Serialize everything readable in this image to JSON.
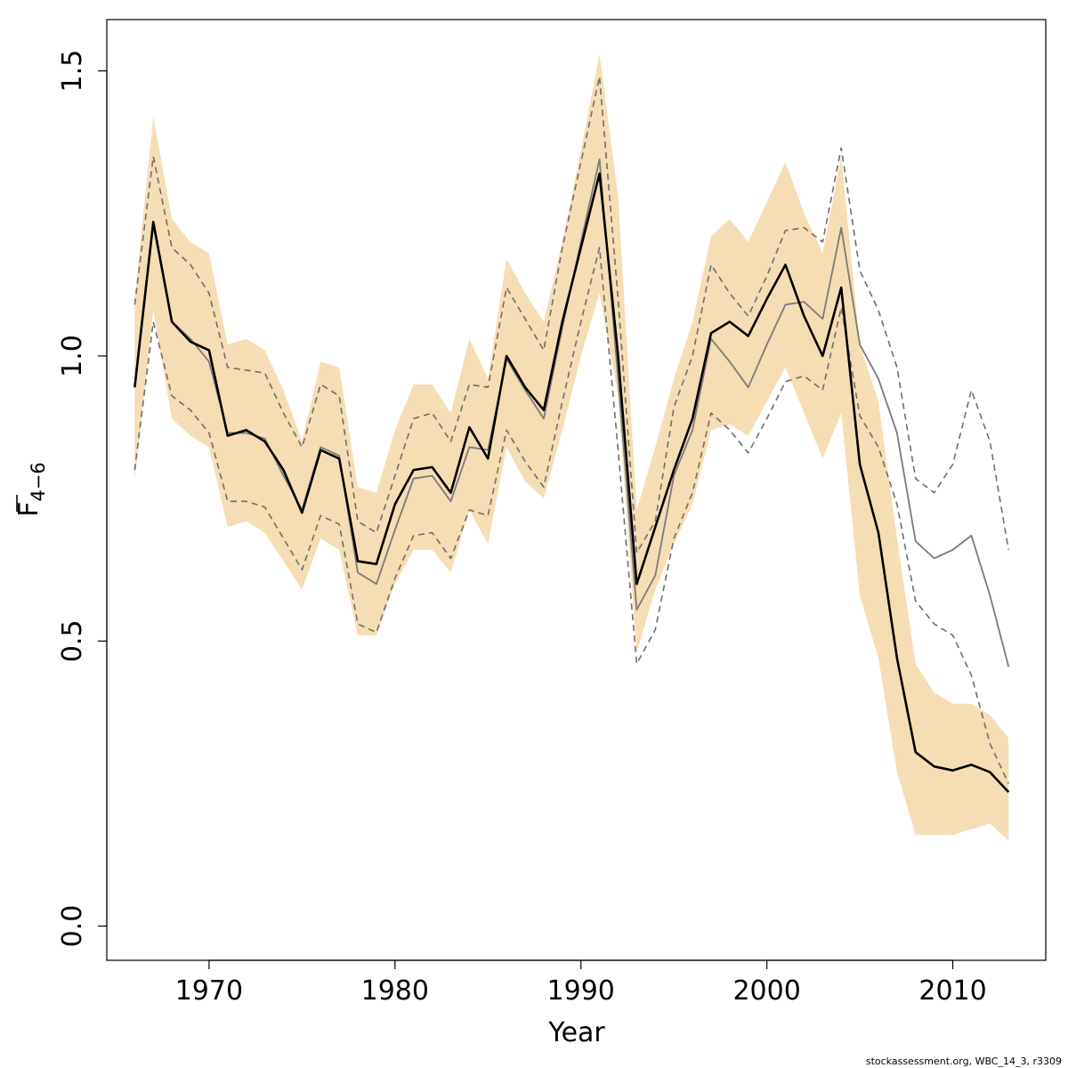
{
  "chart_data": {
    "type": "line",
    "title": "",
    "xlabel": "Year",
    "ylabel_main": "F",
    "ylabel_sub": "4−6",
    "xlim": [
      1964.5,
      2015
    ],
    "ylim": [
      -0.06,
      1.59
    ],
    "x_ticks": [
      1970,
      1980,
      1990,
      2000,
      2010
    ],
    "x_tick_labels": [
      "1970",
      "1980",
      "1990",
      "2000",
      "2010"
    ],
    "y_ticks": [
      0,
      0.5,
      1,
      1.5
    ],
    "y_tick_labels": [
      "0.0",
      "0.5",
      "1.0",
      "1.5"
    ],
    "grid": false,
    "legend": "none",
    "footer": "stockassessment.org, WBC_14_3, r3309",
    "colors": {
      "band": "#f5deb3",
      "estimate": "#000000",
      "comparison": "#7a7a7a",
      "comparison_ci": "#6e6e6e"
    },
    "x": [
      1966,
      1967,
      1968,
      1969,
      1970,
      1971,
      1972,
      1973,
      1974,
      1975,
      1976,
      1977,
      1978,
      1979,
      1980,
      1981,
      1982,
      1983,
      1984,
      1985,
      1986,
      1987,
      1988,
      1989,
      1990,
      1991,
      1992,
      1993,
      1994,
      1995,
      1996,
      1997,
      1998,
      1999,
      2000,
      2001,
      2002,
      2003,
      2004,
      2005,
      2006,
      2007,
      2008,
      2009,
      2010,
      2011,
      2012,
      2013
    ],
    "series": [
      {
        "role": "confidence-band",
        "upper": [
          1.1,
          1.42,
          1.24,
          1.2,
          1.18,
          1.02,
          1.03,
          1.01,
          0.94,
          0.85,
          0.99,
          0.98,
          0.77,
          0.76,
          0.87,
          0.95,
          0.95,
          0.9,
          1.03,
          0.96,
          1.17,
          1.11,
          1.06,
          1.2,
          1.36,
          1.53,
          1.28,
          0.73,
          0.84,
          0.96,
          1.06,
          1.21,
          1.24,
          1.2,
          1.27,
          1.34,
          1.25,
          1.18,
          1.35,
          1.02,
          0.92,
          0.68,
          0.46,
          0.41,
          0.39,
          0.39,
          0.37,
          0.33
        ],
        "lower": [
          0.78,
          1.08,
          0.89,
          0.86,
          0.84,
          0.7,
          0.71,
          0.69,
          0.64,
          0.59,
          0.68,
          0.66,
          0.51,
          0.51,
          0.6,
          0.66,
          0.66,
          0.62,
          0.73,
          0.67,
          0.84,
          0.78,
          0.75,
          0.87,
          1.0,
          1.11,
          0.93,
          0.48,
          0.59,
          0.67,
          0.74,
          0.87,
          0.88,
          0.86,
          0.92,
          0.98,
          0.9,
          0.82,
          0.9,
          0.58,
          0.47,
          0.27,
          0.16,
          0.16,
          0.16,
          0.17,
          0.18,
          0.15
        ]
      },
      {
        "role": "estimate",
        "values": [
          0.945,
          1.235,
          1.06,
          1.025,
          1.01,
          0.86,
          0.87,
          0.85,
          0.8,
          0.725,
          0.835,
          0.82,
          0.64,
          0.635,
          0.74,
          0.8,
          0.805,
          0.76,
          0.875,
          0.82,
          1.0,
          0.945,
          0.905,
          1.06,
          1.19,
          1.32,
          1.0,
          0.6,
          0.7,
          0.8,
          0.89,
          1.04,
          1.06,
          1.035,
          1.1,
          1.16,
          1.07,
          1.0,
          1.12,
          0.81,
          0.69,
          0.47,
          0.305,
          0.28,
          0.273,
          0.283,
          0.27,
          0.235
        ]
      },
      {
        "role": "comparison",
        "values": [
          0.945,
          1.23,
          1.06,
          1.03,
          0.99,
          0.865,
          0.865,
          0.855,
          0.79,
          0.73,
          0.84,
          0.825,
          0.62,
          0.6,
          0.695,
          0.785,
          0.79,
          0.745,
          0.84,
          0.835,
          0.995,
          0.94,
          0.89,
          1.05,
          1.2,
          1.345,
          0.96,
          0.555,
          0.615,
          0.79,
          0.87,
          1.03,
          0.99,
          0.945,
          1.02,
          1.09,
          1.095,
          1.065,
          1.225,
          1.02,
          0.96,
          0.865,
          0.675,
          0.645,
          0.66,
          0.685,
          0.58,
          0.455
        ]
      },
      {
        "role": "comparison-upper",
        "values": [
          1.09,
          1.35,
          1.19,
          1.16,
          1.11,
          0.98,
          0.975,
          0.97,
          0.9,
          0.84,
          0.95,
          0.93,
          0.71,
          0.69,
          0.79,
          0.89,
          0.9,
          0.85,
          0.95,
          0.945,
          1.12,
          1.065,
          1.01,
          1.19,
          1.34,
          1.49,
          1.1,
          0.655,
          0.71,
          0.91,
          1.0,
          1.16,
          1.11,
          1.07,
          1.14,
          1.22,
          1.225,
          1.2,
          1.365,
          1.15,
          1.08,
          0.98,
          0.785,
          0.76,
          0.81,
          0.94,
          0.85,
          0.66
        ]
      },
      {
        "role": "comparison-lower",
        "values": [
          0.8,
          1.06,
          0.93,
          0.905,
          0.865,
          0.745,
          0.745,
          0.735,
          0.68,
          0.625,
          0.72,
          0.705,
          0.53,
          0.515,
          0.61,
          0.685,
          0.69,
          0.645,
          0.73,
          0.72,
          0.87,
          0.815,
          0.77,
          0.92,
          1.06,
          1.19,
          0.835,
          0.46,
          0.52,
          0.68,
          0.76,
          0.9,
          0.87,
          0.83,
          0.89,
          0.955,
          0.965,
          0.94,
          1.085,
          0.895,
          0.84,
          0.74,
          0.57,
          0.53,
          0.51,
          0.44,
          0.32,
          0.25
        ]
      }
    ]
  }
}
